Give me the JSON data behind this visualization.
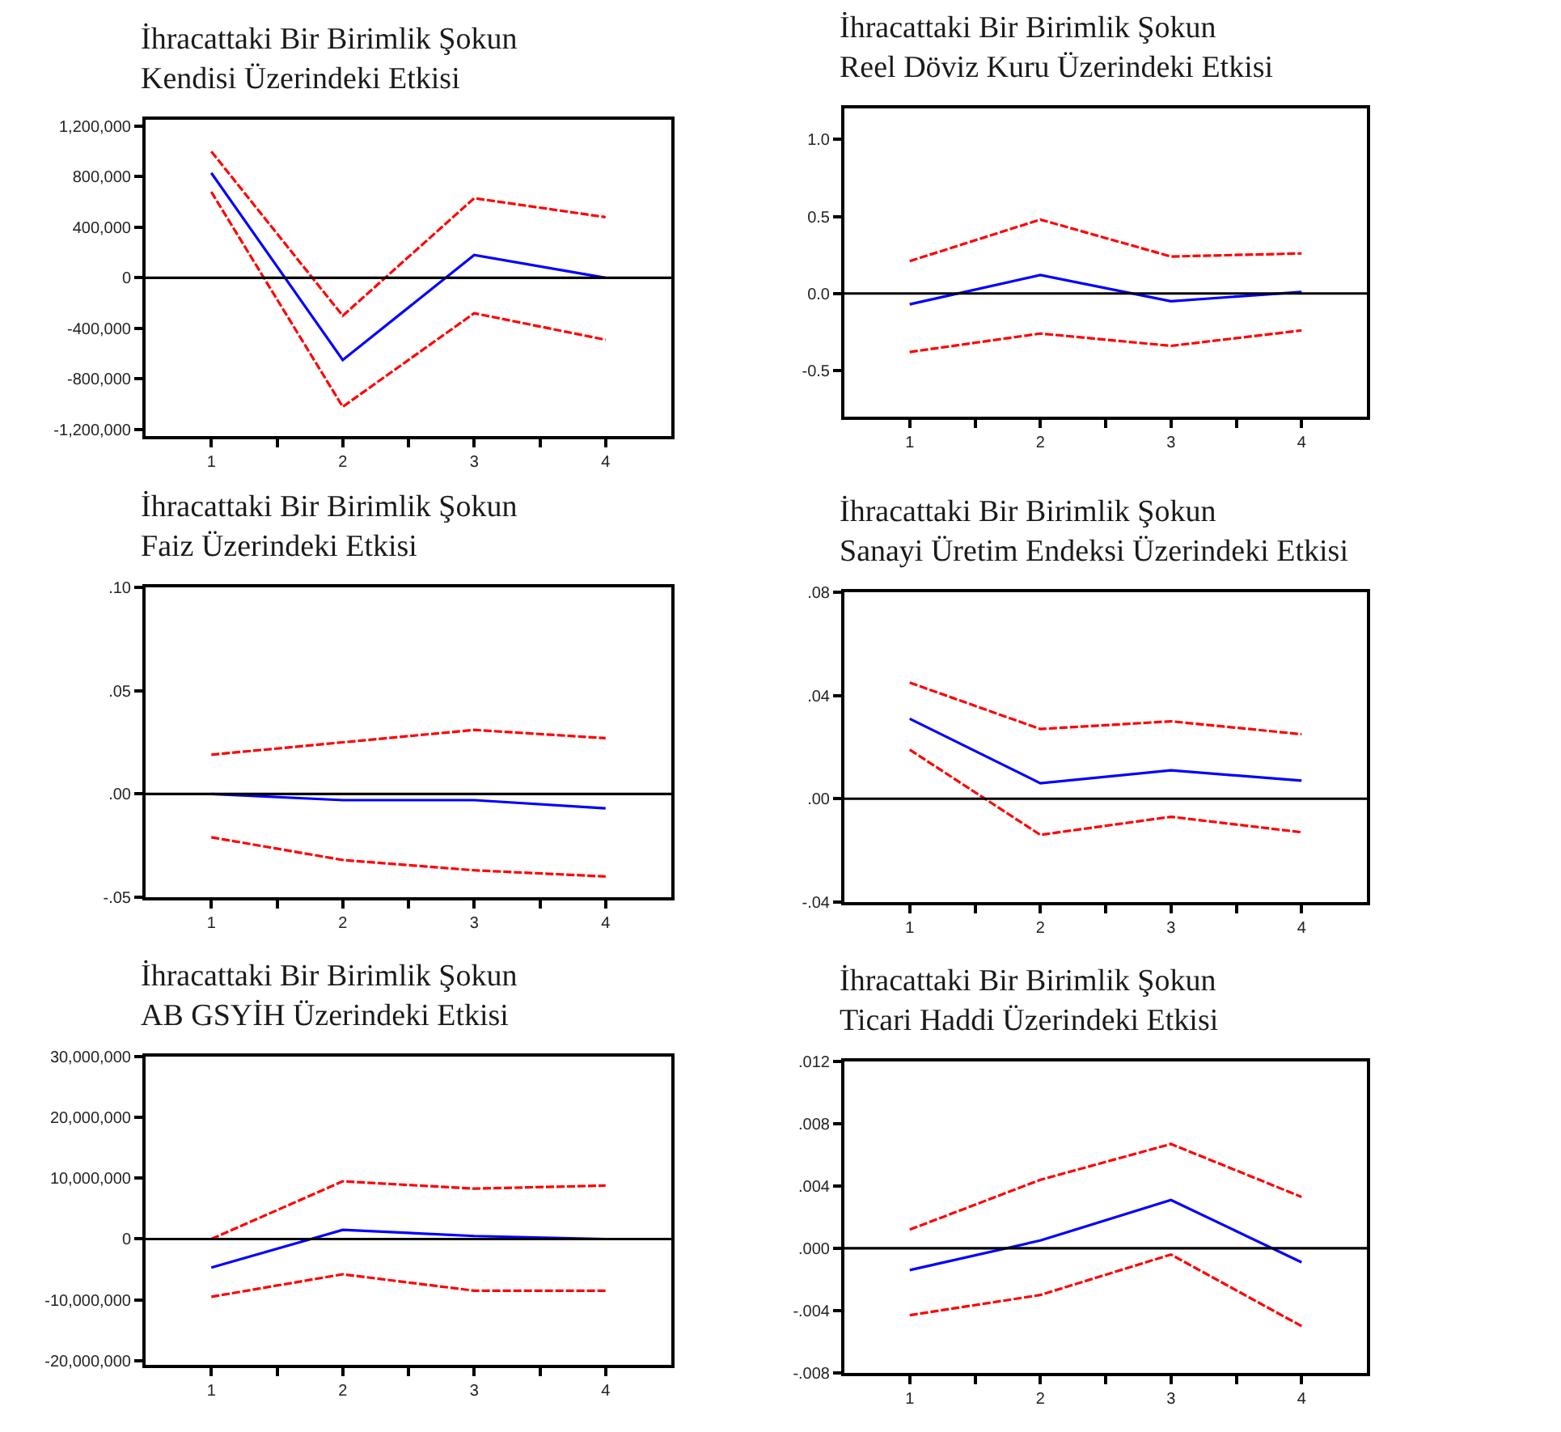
{
  "chart_data": [
    {
      "type": "line",
      "title": "İhracattaki Bir Birimlik Şokun\nKendisi Üzerindeki Etkisi",
      "x": [
        1,
        2,
        3,
        4
      ],
      "xlim": [
        0.5,
        4.5
      ],
      "xticks": [
        1,
        {
          "value": 1.5,
          "label": null
        },
        2,
        {
          "value": 2.5,
          "label": null
        },
        3,
        {
          "value": 3.5,
          "label": null
        },
        4
      ],
      "ylim": [
        -1250000,
        1250000
      ],
      "yticks": [
        {
          "value": 1200000,
          "label": "1,200,000"
        },
        {
          "value": 800000,
          "label": "800,000"
        },
        {
          "value": 400000,
          "label": "400,000"
        },
        0,
        {
          "value": -400000,
          "label": "-400,000"
        },
        {
          "value": -800000,
          "label": "-800,000"
        },
        {
          "value": -1200000,
          "label": "-1,200,000"
        }
      ],
      "ref_lines": [
        {
          "axis": "y",
          "value": 0,
          "color": "#000000",
          "line_style": "solid"
        }
      ],
      "series": [
        {
          "color": "#0000ff",
          "line_style": "solid",
          "values": [
            830000,
            -650000,
            180000,
            0
          ]
        },
        {
          "color": "#ff0000",
          "line_style": "dashed",
          "values": [
            1000000,
            -300000,
            630000,
            480000
          ]
        },
        {
          "color": "#ff0000",
          "line_style": "dashed",
          "values": [
            680000,
            -1020000,
            -280000,
            -490000
          ]
        }
      ]
    },
    {
      "type": "line",
      "title": "İhracattaki Bir Birimlik Şokun\nReel Döviz Kuru Üzerindeki Etkisi",
      "x": [
        1,
        2,
        3,
        4
      ],
      "xlim": [
        0.5,
        4.5
      ],
      "xticks": [
        1,
        {
          "value": 1.5,
          "label": null
        },
        2,
        {
          "value": 2.5,
          "label": null
        },
        3,
        {
          "value": 3.5,
          "label": null
        },
        4
      ],
      "ylim": [
        -0.8,
        1.2
      ],
      "yticks": [
        {
          "value": 1.0,
          "label": "1.0"
        },
        0.5,
        {
          "value": 0,
          "label": "0.0"
        },
        -0.5
      ],
      "ref_lines": [
        {
          "axis": "y",
          "value": 0,
          "color": "#000000",
          "line_style": "solid"
        }
      ],
      "series": [
        {
          "color": "#0000ff",
          "line_style": "solid",
          "values": [
            -0.07,
            0.12,
            -0.05,
            0.01
          ]
        },
        {
          "color": "#ff0000",
          "line_style": "dashed",
          "values": [
            0.21,
            0.48,
            0.24,
            0.26
          ]
        },
        {
          "color": "#ff0000",
          "line_style": "dashed",
          "values": [
            -0.38,
            -0.26,
            -0.34,
            -0.24
          ]
        }
      ]
    },
    {
      "type": "line",
      "title": "İhracattaki Bir Birimlik Şokun\nFaiz Üzerindeki Etkisi",
      "x": [
        1,
        2,
        3,
        4
      ],
      "xlim": [
        0.5,
        4.5
      ],
      "xticks": [
        1,
        {
          "value": 1.5,
          "label": null
        },
        2,
        {
          "value": 2.5,
          "label": null
        },
        3,
        {
          "value": 3.5,
          "label": null
        },
        4
      ],
      "ylim": [
        -0.05,
        0.1
      ],
      "yticks": [
        {
          "value": 0.1,
          "label": ".10"
        },
        {
          "value": 0.05,
          "label": ".05"
        },
        {
          "value": 0,
          "label": ".00"
        },
        {
          "value": -0.05,
          "label": "-.05"
        }
      ],
      "ref_lines": [
        {
          "axis": "y",
          "value": 0,
          "color": "#000000",
          "line_style": "solid"
        }
      ],
      "series": [
        {
          "color": "#0000ff",
          "line_style": "solid",
          "values": [
            0.0,
            -0.003,
            -0.003,
            -0.007
          ]
        },
        {
          "color": "#ff0000",
          "line_style": "dashed",
          "values": [
            0.019,
            0.025,
            0.031,
            0.027
          ]
        },
        {
          "color": "#ff0000",
          "line_style": "dashed",
          "values": [
            -0.021,
            -0.032,
            -0.037,
            -0.04
          ]
        }
      ]
    },
    {
      "type": "line",
      "title": "İhracattaki Bir Birimlik Şokun\nSanayi Üretim Endeksi Üzerindeki Etkisi",
      "x": [
        1,
        2,
        3,
        4
      ],
      "xlim": [
        0.5,
        4.5
      ],
      "xticks": [
        1,
        {
          "value": 1.5,
          "label": null
        },
        2,
        {
          "value": 2.5,
          "label": null
        },
        3,
        {
          "value": 3.5,
          "label": null
        },
        4
      ],
      "ylim": [
        -0.04,
        0.08
      ],
      "yticks": [
        {
          "value": 0.08,
          "label": ".08"
        },
        {
          "value": 0.04,
          "label": ".04"
        },
        {
          "value": 0,
          "label": ".00"
        },
        {
          "value": -0.04,
          "label": "-.04"
        }
      ],
      "ref_lines": [
        {
          "axis": "y",
          "value": 0,
          "color": "#000000",
          "line_style": "solid"
        }
      ],
      "series": [
        {
          "color": "#0000ff",
          "line_style": "solid",
          "values": [
            0.031,
            0.006,
            0.011,
            0.007
          ]
        },
        {
          "color": "#ff0000",
          "line_style": "dashed",
          "values": [
            0.045,
            0.027,
            0.03,
            0.025
          ]
        },
        {
          "color": "#ff0000",
          "line_style": "dashed",
          "values": [
            0.019,
            -0.014,
            -0.007,
            -0.013
          ]
        }
      ]
    },
    {
      "type": "line",
      "title": "İhracattaki Bir Birimlik Şokun\nAB GSYİH Üzerindeki Etkisi",
      "x": [
        1,
        2,
        3,
        4
      ],
      "xlim": [
        0.5,
        4.5
      ],
      "xticks": [
        1,
        {
          "value": 1.5,
          "label": null
        },
        2,
        {
          "value": 2.5,
          "label": null
        },
        3,
        {
          "value": 3.5,
          "label": null
        },
        4
      ],
      "ylim": [
        -20700000,
        30000000
      ],
      "yticks": [
        {
          "value": 30000000,
          "label": "30,000,000"
        },
        {
          "value": 20000000,
          "label": "20,000,000"
        },
        {
          "value": 10000000,
          "label": "10,000,000"
        },
        0,
        {
          "value": -10000000,
          "label": "-10,000,000"
        },
        {
          "value": -20000000,
          "label": "-20,000,000"
        }
      ],
      "ref_lines": [
        {
          "axis": "y",
          "value": 0,
          "color": "#000000",
          "line_style": "solid"
        }
      ],
      "series": [
        {
          "color": "#0000ff",
          "line_style": "solid",
          "values": [
            -4700000,
            1500000,
            500000,
            0
          ]
        },
        {
          "color": "#ff0000",
          "line_style": "dashed",
          "values": [
            0,
            9500000,
            8300000,
            8800000
          ]
        },
        {
          "color": "#ff0000",
          "line_style": "dashed",
          "values": [
            -9500000,
            -5800000,
            -8500000,
            -8500000
          ]
        }
      ]
    },
    {
      "type": "line",
      "title": "İhracattaki Bir Birimlik Şokun\nTicari Haddi Üzerindeki Etkisi",
      "x": [
        1,
        2,
        3,
        4
      ],
      "xlim": [
        0.5,
        4.5
      ],
      "xticks": [
        1,
        {
          "value": 1.5,
          "label": null
        },
        2,
        {
          "value": 2.5,
          "label": null
        },
        3,
        {
          "value": 3.5,
          "label": null
        },
        4
      ],
      "ylim": [
        -0.008,
        0.012
      ],
      "yticks": [
        {
          "value": 0.012,
          "label": ".012"
        },
        {
          "value": 0.008,
          "label": ".008"
        },
        {
          "value": 0.004,
          "label": ".004"
        },
        {
          "value": 0,
          "label": ".000"
        },
        {
          "value": -0.004,
          "label": "-.004"
        },
        {
          "value": -0.008,
          "label": "-.008"
        }
      ],
      "ref_lines": [
        {
          "axis": "y",
          "value": 0,
          "color": "#000000",
          "line_style": "solid"
        }
      ],
      "series": [
        {
          "color": "#0000ff",
          "line_style": "solid",
          "values": [
            -0.0014,
            0.0005,
            0.0031,
            -0.0009
          ]
        },
        {
          "color": "#ff0000",
          "line_style": "dashed",
          "values": [
            0.0012,
            0.0044,
            0.0067,
            0.0033
          ]
        },
        {
          "color": "#ff0000",
          "line_style": "dashed",
          "values": [
            -0.0043,
            -0.003,
            -0.0004,
            -0.005
          ]
        }
      ]
    }
  ]
}
